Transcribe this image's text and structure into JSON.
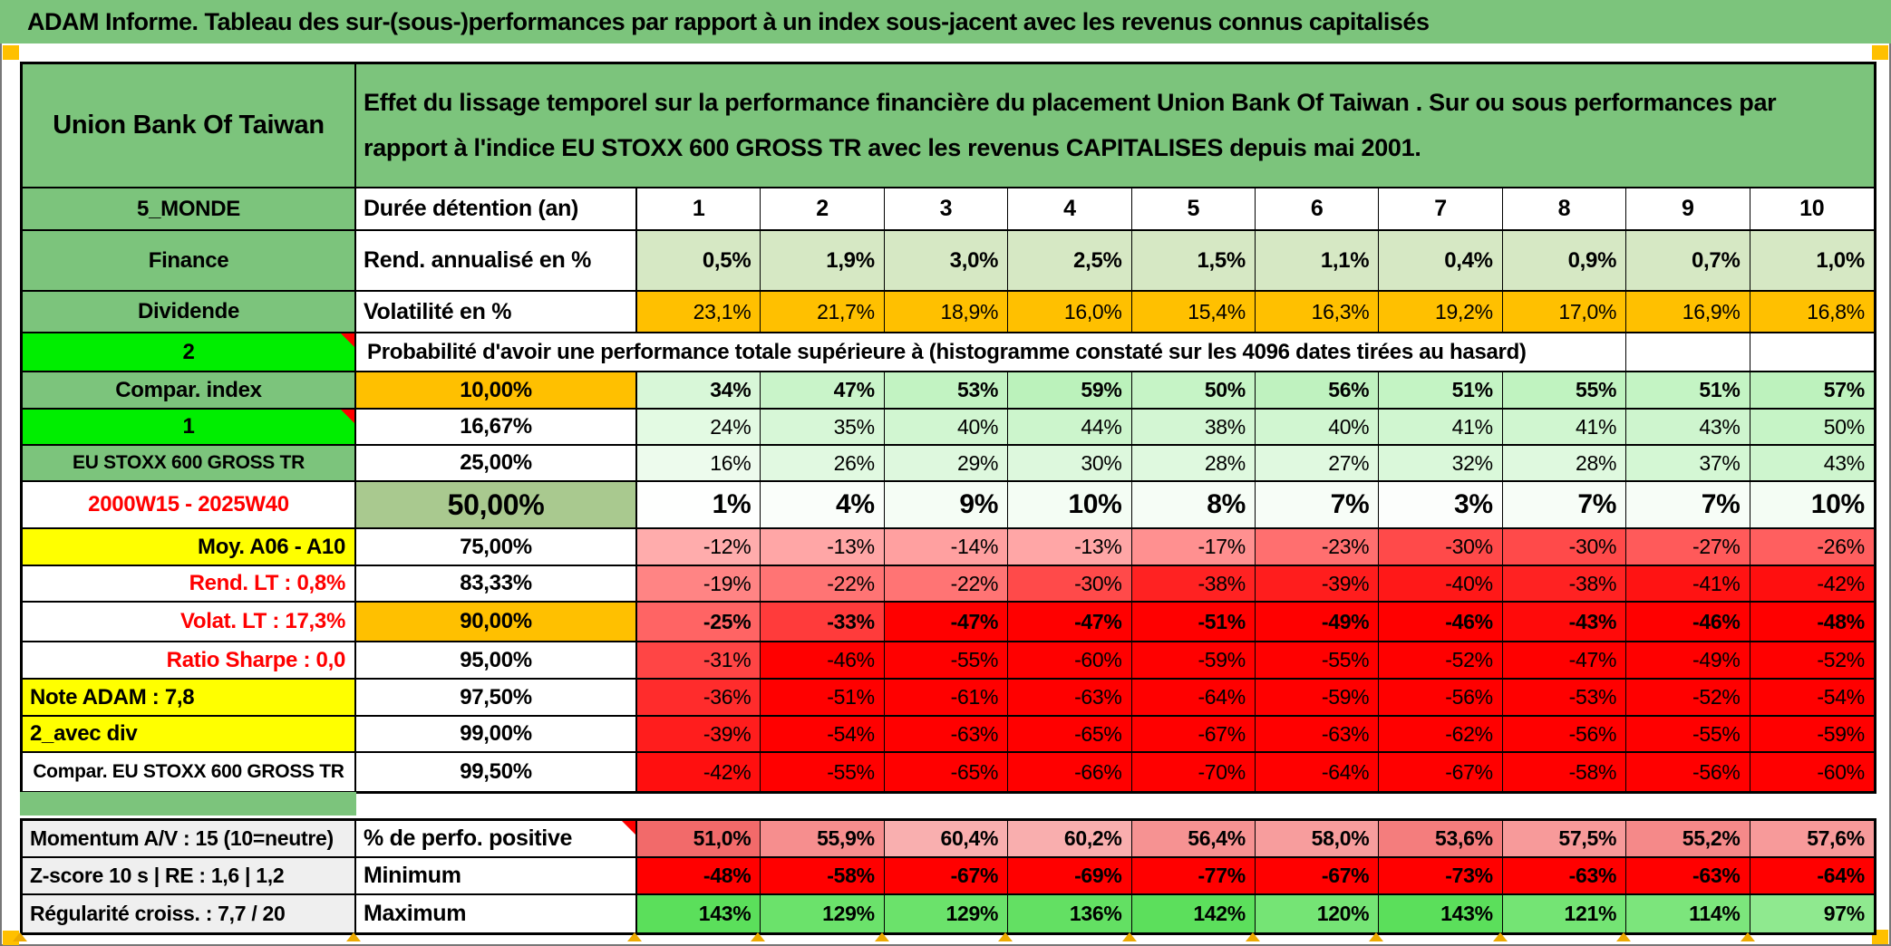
{
  "title": "ADAM Informe. Tableau des sur-(sous-)performances par rapport à un index sous-jacent avec les revenus connus capitalisés",
  "header": {
    "entity": "Union Bank Of Taiwan",
    "description": "Effet du lissage temporel sur la performance financière du placement Union Bank Of Taiwan . Sur ou sous performances par rapport à l'indice EU STOXX 600 GROSS TR avec les revenus CAPITALISES depuis mai 2001."
  },
  "duration_row": {
    "sidebar": "5_MONDE",
    "label": "Durée détention (an)",
    "years": [
      "1",
      "2",
      "3",
      "4",
      "5",
      "6",
      "7",
      "8",
      "9",
      "10"
    ]
  },
  "annualized_row": {
    "sidebar": "Finance",
    "label": "Rend. annualisé en %",
    "values": [
      "0,5%",
      "1,9%",
      "3,0%",
      "2,5%",
      "1,5%",
      "1,1%",
      "0,4%",
      "0,9%",
      "0,7%",
      "1,0%"
    ]
  },
  "volatility_row": {
    "sidebar": "Dividende",
    "label": "Volatilité en %",
    "values": [
      "23,1%",
      "21,7%",
      "18,9%",
      "16,0%",
      "15,4%",
      "16,3%",
      "19,2%",
      "17,0%",
      "16,9%",
      "16,8%"
    ]
  },
  "probability_header": {
    "sidebar": "2",
    "label": "Probabilité d'avoir une performance totale supérieure à (histogramme constaté sur les 4096 dates tirées au hasard)"
  },
  "probability_rows": [
    {
      "sidebar": "Compar. index",
      "sidebar_style": "green",
      "sidebar_align": "ac",
      "threshold": "10,00%",
      "threshold_style": "orange",
      "bold": true,
      "values": [
        34,
        47,
        53,
        59,
        50,
        56,
        51,
        55,
        51,
        57
      ]
    },
    {
      "sidebar": "1",
      "sidebar_style": "bright",
      "sidebar_align": "ac",
      "comment": true,
      "threshold": "16,67%",
      "threshold_style": "white",
      "bold": false,
      "values": [
        24,
        35,
        40,
        44,
        38,
        40,
        41,
        41,
        43,
        50
      ]
    },
    {
      "sidebar": "EU STOXX 600 GROSS TR",
      "sidebar_style": "green",
      "sidebar_align": "ac",
      "sidebar_small": true,
      "threshold": "25,00%",
      "threshold_style": "white",
      "bold": false,
      "values": [
        16,
        26,
        29,
        30,
        28,
        27,
        32,
        28,
        37,
        43
      ]
    },
    {
      "sidebar": "2000W15 - 2025W40",
      "sidebar_style": "whitered",
      "sidebar_align": "ac",
      "threshold": "50,00%",
      "threshold_style": "sage",
      "bold": true,
      "big": true,
      "values": [
        1,
        4,
        9,
        10,
        8,
        7,
        3,
        7,
        7,
        10
      ]
    },
    {
      "sidebar": "Moy. A06 - A10",
      "sidebar_style": "yellow",
      "sidebar_align": "ar",
      "threshold": "75,00%",
      "threshold_style": "white",
      "bold": false,
      "values": [
        -12,
        -13,
        -14,
        -13,
        -17,
        -23,
        -30,
        -30,
        -27,
        -26
      ]
    },
    {
      "sidebar": "Rend. LT :   0,8%",
      "sidebar_style": "whitered",
      "sidebar_align": "ar",
      "threshold": "83,33%",
      "threshold_style": "white",
      "bold": false,
      "values": [
        -19,
        -22,
        -22,
        -30,
        -38,
        -39,
        -40,
        -38,
        -41,
        -42
      ]
    },
    {
      "sidebar": "Volat. LT :   17,3%",
      "sidebar_style": "whitered",
      "sidebar_align": "ar",
      "threshold": "90,00%",
      "threshold_style": "orange",
      "bold": true,
      "values": [
        -25,
        -33,
        -47,
        -47,
        -51,
        -49,
        -46,
        -43,
        -46,
        -48
      ]
    },
    {
      "sidebar": "Ratio Sharpe :   0,0",
      "sidebar_style": "whitered",
      "sidebar_align": "ar",
      "threshold": "95,00%",
      "threshold_style": "white",
      "bold": false,
      "values": [
        -31,
        -46,
        -55,
        -60,
        -59,
        -55,
        -52,
        -47,
        -49,
        -52
      ]
    },
    {
      "sidebar": "Note ADAM : 7,8",
      "sidebar_style": "yellow",
      "sidebar_align": "al",
      "threshold": "97,50%",
      "threshold_style": "white",
      "bold": false,
      "values": [
        -36,
        -51,
        -61,
        -63,
        -64,
        -59,
        -56,
        -53,
        -52,
        -54
      ]
    },
    {
      "sidebar": "2_avec div",
      "sidebar_style": "yellow",
      "sidebar_align": "al",
      "threshold": "99,00%",
      "threshold_style": "white",
      "bold": false,
      "values": [
        -39,
        -54,
        -63,
        -65,
        -67,
        -63,
        -62,
        -56,
        -55,
        -59
      ]
    },
    {
      "sidebar": "Compar. EU STOXX 600 GROSS TR",
      "sidebar_style": "white",
      "sidebar_align": "ac",
      "sidebar_small": true,
      "threshold": "99,50%",
      "threshold_style": "white",
      "bold": false,
      "values": [
        -42,
        -55,
        -65,
        -66,
        -70,
        -64,
        -67,
        -58,
        -56,
        -60
      ]
    }
  ],
  "stats_rows": [
    {
      "sidebar": "Momentum A/V : 15 (10=neutre)",
      "label": "% de perfo. positive",
      "comment": true,
      "display": [
        "51,0%",
        "55,9%",
        "60,4%",
        "60,2%",
        "56,4%",
        "58,0%",
        "53,6%",
        "57,5%",
        "55,2%",
        "57,6%"
      ],
      "nums": [
        51.0,
        55.9,
        60.4,
        60.2,
        56.4,
        58.0,
        53.6,
        57.5,
        55.2,
        57.6
      ],
      "scale": "pink"
    },
    {
      "sidebar": "Z-score 10 s | RE : 1,6 | 1,2",
      "label": "Minimum",
      "values": [
        -48,
        -58,
        -67,
        -69,
        -77,
        -67,
        -73,
        -63,
        -63,
        -64
      ],
      "scale": "diverge"
    },
    {
      "sidebar": "Régularité croiss. : 7,7 / 20",
      "label": "Maximum",
      "values": [
        143,
        129,
        129,
        136,
        142,
        120,
        143,
        121,
        114,
        97
      ],
      "scale": "diverge"
    }
  ],
  "colors": {
    "header_green": "#7CC47C",
    "bright_green": "#00EE00",
    "orange": "#FFC000",
    "yellow": "#FFFF00",
    "sage": "#A9C98F",
    "light_green": "#D6E8C4",
    "gray": "#EFEFEF",
    "red_text": "#FF0000",
    "full_red": "#FF0000",
    "full_green": "#47DB47",
    "pink_low": "#F26A6A",
    "pink_high": "#F9AFAF"
  }
}
